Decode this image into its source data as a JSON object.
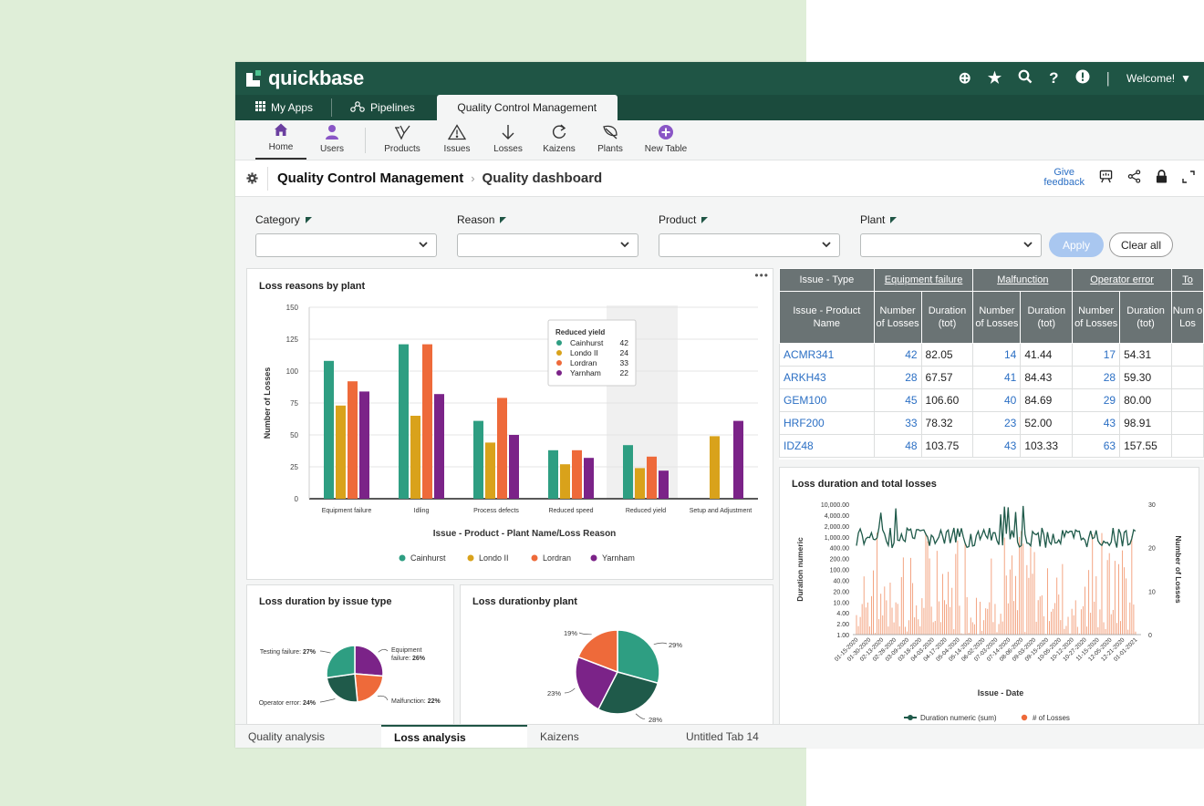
{
  "header": {
    "brand": "quickbase",
    "welcome": "Welcome!",
    "icons": [
      "plus-circle-icon",
      "star-icon",
      "search-icon",
      "help-icon",
      "alert-icon"
    ]
  },
  "app_tabs": [
    {
      "label": "My Apps",
      "icon": "grid-icon"
    },
    {
      "label": "Pipelines",
      "icon": "pipelines-icon"
    },
    {
      "label": "Quality Control Management",
      "active": true
    }
  ],
  "table_bar": [
    {
      "label": "Home",
      "icon": "home-icon"
    },
    {
      "label": "Users",
      "icon": "user-icon"
    },
    {
      "label": "Products",
      "icon": "products-icon"
    },
    {
      "label": "Issues",
      "icon": "warning-icon"
    },
    {
      "label": "Losses",
      "icon": "arrow-down-icon"
    },
    {
      "label": "Kaizens",
      "icon": "refresh-icon"
    },
    {
      "label": "Plants",
      "icon": "leaf-icon"
    },
    {
      "label": "New Table",
      "icon": "plus-circle-icon"
    }
  ],
  "breadcrumb": {
    "app": "Quality Control Management",
    "page": "Quality dashboard",
    "feedback_line1": "Give",
    "feedback_line2": "feedback"
  },
  "filters": [
    {
      "label": "Category",
      "value": ""
    },
    {
      "label": "Reason",
      "value": ""
    },
    {
      "label": "Product",
      "value": ""
    },
    {
      "label": "Plant",
      "value": ""
    }
  ],
  "buttons": {
    "apply": "Apply",
    "clear": "Clear all"
  },
  "bar_chart": {
    "title": "Loss reasons by plant",
    "more": "•••",
    "tooltip": {
      "title": "Reduced yield",
      "rows": [
        {
          "name": "Cainhurst",
          "value": "42"
        },
        {
          "name": "Londo II",
          "value": "24"
        },
        {
          "name": "Lordran",
          "value": "33"
        },
        {
          "name": "Yarnham",
          "value": "22"
        }
      ]
    }
  },
  "table": {
    "group_headers": [
      "Issue - Type",
      "Equipment failure",
      "Malfunction",
      "Operator error",
      "To"
    ],
    "sub_headers": [
      "Issue - Product Name",
      "Number of Losses",
      "Duration (tot)",
      "Number of Losses",
      "Duration (tot)",
      "Number of Losses",
      "Duration (tot)",
      "Num o Los"
    ],
    "rows": [
      {
        "name": "ACMR341",
        "v": [
          "42",
          "82.05",
          "14",
          "41.44",
          "17",
          "54.31"
        ]
      },
      {
        "name": "ARKH43",
        "v": [
          "28",
          "67.57",
          "41",
          "84.43",
          "28",
          "59.30"
        ]
      },
      {
        "name": "GEM100",
        "v": [
          "45",
          "106.60",
          "40",
          "84.69",
          "29",
          "80.00"
        ]
      },
      {
        "name": "HRF200",
        "v": [
          "33",
          "78.32",
          "23",
          "52.00",
          "43",
          "98.91"
        ]
      },
      {
        "name": "IDZ48",
        "v": [
          "48",
          "103.75",
          "43",
          "103.33",
          "63",
          "157.55"
        ]
      }
    ]
  },
  "pie1_title": "Loss duration by issue type",
  "pie2_title": "Loss durationby plant",
  "line_title": "Loss duration and total losses",
  "bottom_tabs": [
    "Quality analysis",
    "Loss analysis",
    "Kaizens",
    "Untitled Tab 14"
  ],
  "chart_data": [
    {
      "type": "bar",
      "title": "Loss reasons by plant",
      "xlabel": "Issue - Product - Plant Name/Loss Reason",
      "ylabel": "Number of Losses",
      "ylim": [
        0,
        150
      ],
      "yticks": [
        "0",
        "25",
        "50",
        "75",
        "100",
        "125",
        "150"
      ],
      "categories": [
        "Equipment failure",
        "Idling",
        "Process defects",
        "Reduced speed",
        "Reduced yield",
        "Setup and Adjustment"
      ],
      "legend": "bottom",
      "series": [
        {
          "name": "Cainhurst",
          "color": "#2e9e82",
          "values": [
            108,
            121,
            61,
            38,
            42,
            0
          ]
        },
        {
          "name": "Londo II",
          "color": "#d9a21b",
          "values": [
            73,
            65,
            44,
            27,
            24,
            49
          ]
        },
        {
          "name": "Lordran",
          "color": "#ee6a3a",
          "values": [
            92,
            121,
            79,
            38,
            33,
            0
          ]
        },
        {
          "name": "Yarnham",
          "color": "#7b2388",
          "values": [
            84,
            82,
            50,
            32,
            22,
            61
          ]
        }
      ]
    },
    {
      "type": "pie",
      "title": "Loss duration by issue type",
      "slices": [
        {
          "label": "Equipment failure: 26%",
          "value": 26,
          "color": "#7b2388"
        },
        {
          "label": "Malfunction: 22%",
          "value": 22,
          "color": "#ee6a3a"
        },
        {
          "label": "Operator error: 24%",
          "value": 24,
          "color": "#1f5a4a"
        },
        {
          "label": "Testing failure: 27%",
          "value": 27,
          "color": "#2e9e82"
        }
      ]
    },
    {
      "type": "pie",
      "title": "Loss durationby plant",
      "slices": [
        {
          "label": "29%",
          "value": 29,
          "color": "#2e9e82"
        },
        {
          "label": "28%",
          "value": 28,
          "color": "#1f5a4a"
        },
        {
          "label": "23%",
          "value": 23,
          "color": "#7b2388"
        },
        {
          "label": "19%",
          "value": 19,
          "color": "#ee6a3a"
        }
      ]
    },
    {
      "type": "line",
      "title": "Loss duration and total losses",
      "xlabel": "Issue - Date",
      "ylabel": "Duration numeric",
      "ylabel_right": "Number of Losses",
      "yticks_left": [
        "1.00",
        "2.00",
        "4.00",
        "10.00",
        "20.00",
        "40.00",
        "100.00",
        "200.00",
        "400.00",
        "1,000.00",
        "2,000.00",
        "4,000.00",
        "10,000.00"
      ],
      "yticks_right": [
        "0",
        "10",
        "20",
        "30"
      ],
      "xticks": [
        "01-15-2020",
        "01-30-2020",
        "02-13-2020",
        "02-28-2020",
        "03-09-2020",
        "03-18-2020",
        "04-03-2020",
        "04-17-2020",
        "05-04-2020",
        "05-14-2020",
        "06-02-2020",
        "07-03-2020",
        "07-14-2020",
        "08-06-2020",
        "09-03-2020",
        "09-15-2020",
        "10-05-2020",
        "10-12-2020",
        "10-27-2020",
        "11-15-2020",
        "12-05-2020",
        "12-21-2020",
        "01-01-2021"
      ],
      "legend": "bottom",
      "series": [
        {
          "name": "Duration numeric (sum)",
          "color": "#1f5a4a"
        },
        {
          "name": "# of Losses",
          "color": "#ee6a3a"
        }
      ]
    }
  ]
}
